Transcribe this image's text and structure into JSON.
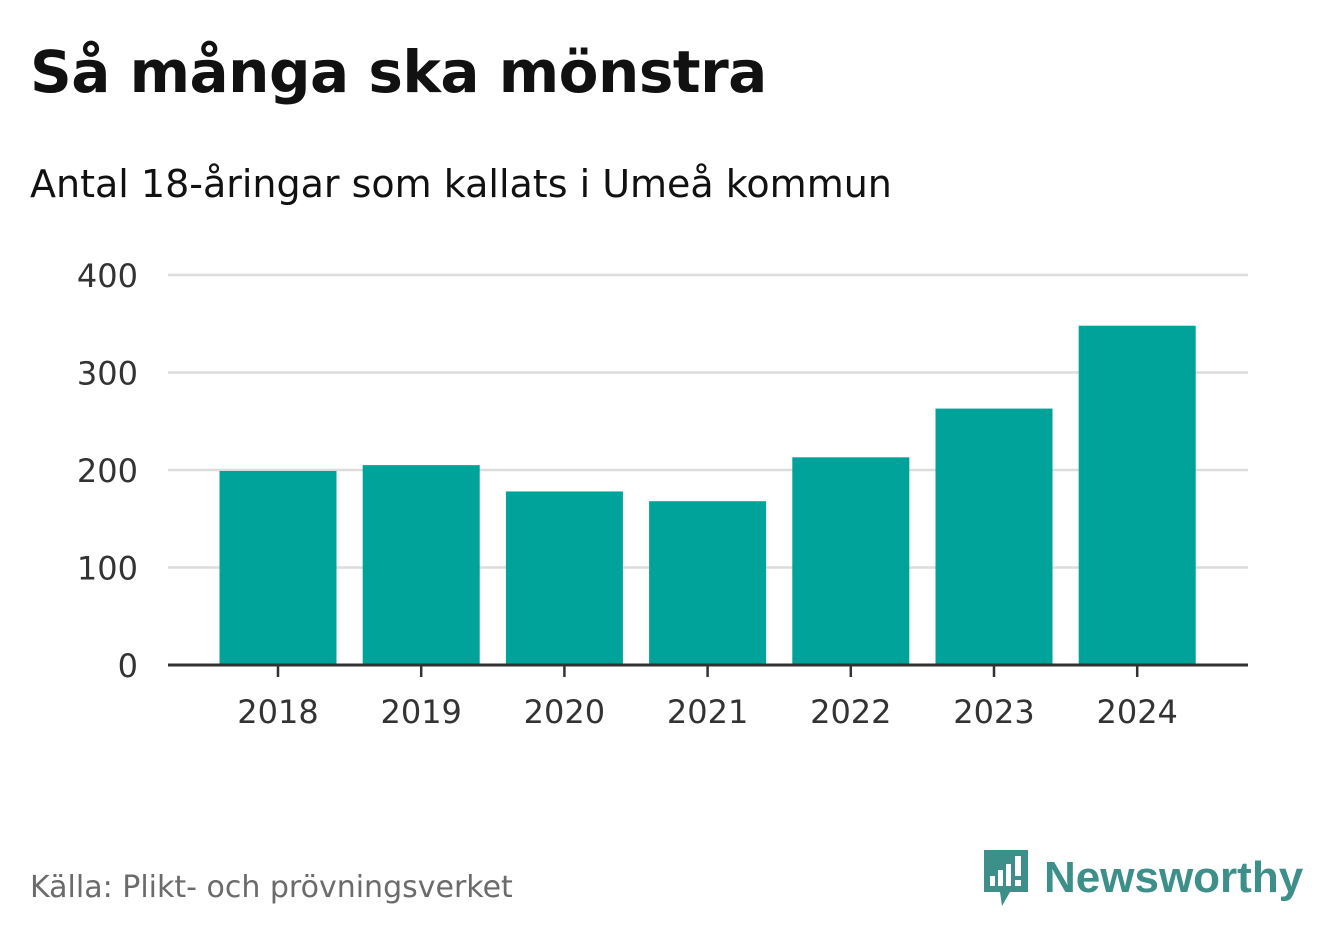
{
  "chart_data": {
    "type": "bar",
    "title": "Så många ska mönstra",
    "subtitle": "Antal 18-åringar som kallats i Umeå kommun",
    "categories": [
      "2018",
      "2019",
      "2020",
      "2021",
      "2022",
      "2023",
      "2024"
    ],
    "values": [
      199,
      205,
      178,
      168,
      213,
      263,
      348
    ],
    "ylim": [
      0,
      400
    ],
    "yticks": [
      0,
      100,
      200,
      300,
      400
    ],
    "xlabel": "",
    "ylabel": "",
    "grid": true,
    "bar_color": "#00a39a"
  },
  "footer": {
    "source": "Källa: Plikt- och prövningsverket",
    "brand": "Newsworthy",
    "brand_color": "#3d8f8a"
  }
}
